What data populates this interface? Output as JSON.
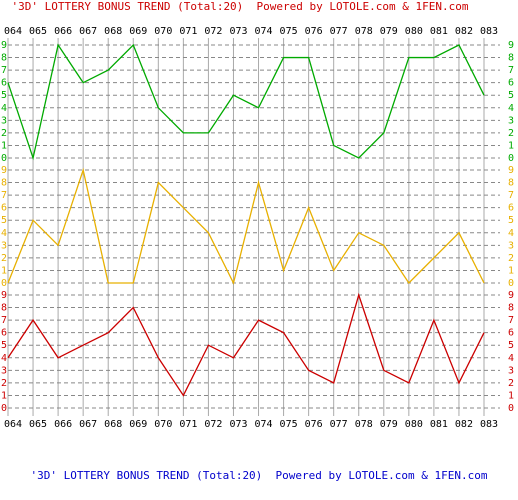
{
  "chart_data": {
    "type": "line",
    "title": "'3D' LOTTERY BONUS TREND (Total:20)  Powered by LOTOLE.com & 1FEN.com",
    "footer": "'3D' LOTTERY BONUS TREND (Total:20)  Powered by LOTOLE.com & 1FEN.com",
    "categories": [
      "064",
      "065",
      "066",
      "067",
      "068",
      "069",
      "070",
      "071",
      "072",
      "073",
      "074",
      "075",
      "076",
      "077",
      "078",
      "079",
      "080",
      "081",
      "082",
      "083"
    ],
    "ylim": [
      0,
      9
    ],
    "yticks": [
      0,
      1,
      2,
      3,
      4,
      5,
      6,
      7,
      8,
      9
    ],
    "grid": true,
    "series": [
      {
        "color": "#00aa00",
        "values": [
          6,
          0,
          9,
          6,
          7,
          9,
          4,
          2,
          2,
          5,
          4,
          8,
          8,
          1,
          0,
          2,
          8,
          8,
          9,
          5
        ]
      },
      {
        "color": "#e8b000",
        "values": [
          0,
          5,
          3,
          9,
          0,
          0,
          8,
          6,
          4,
          0,
          8,
          1,
          6,
          1,
          4,
          3,
          0,
          2,
          4,
          0
        ]
      },
      {
        "color": "#cc0000",
        "values": [
          4,
          7,
          4,
          5,
          6,
          8,
          4,
          1,
          5,
          4,
          7,
          6,
          3,
          2,
          9,
          3,
          2,
          7,
          2,
          6
        ]
      }
    ]
  }
}
